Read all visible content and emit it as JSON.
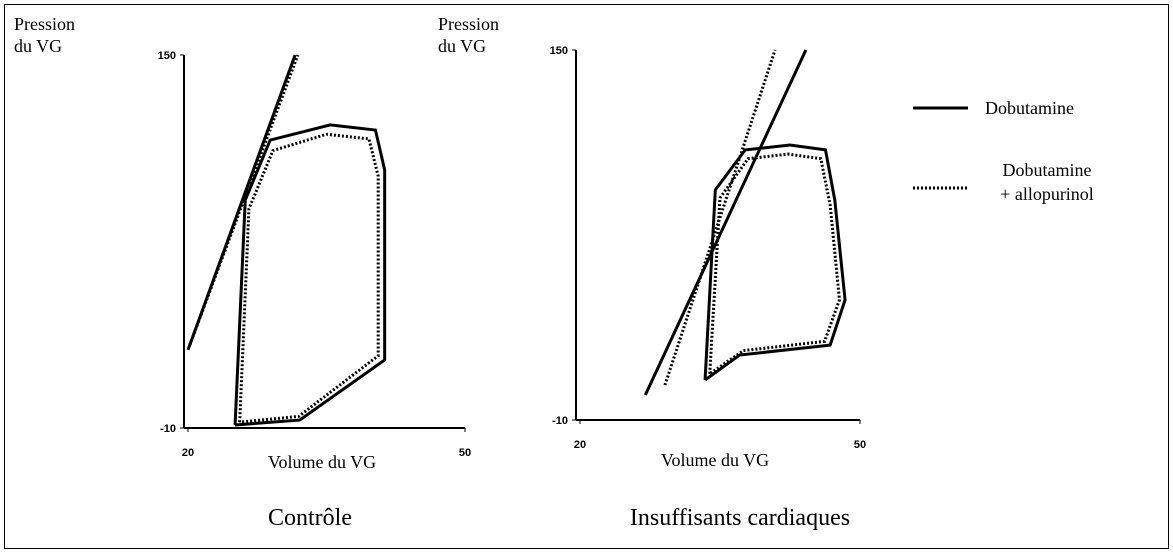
{
  "chart_data": [
    {
      "type": "line",
      "subtitle": "Contrôle",
      "ylabel_lines": [
        "Pression",
        "du VG"
      ],
      "xlabel": "Volume du VG",
      "xlim": [
        20,
        50
      ],
      "ylim": [
        -10,
        150
      ],
      "xticks": [
        20,
        50
      ],
      "yticks": [
        -10,
        150
      ],
      "series": [
        {
          "style": "solid",
          "x": [
            20,
            31.6
          ],
          "values": [
            23.5,
            150
          ]
        },
        {
          "style": "dotted",
          "x": [
            20.2,
            31.9
          ],
          "values": [
            25.6,
            150
          ]
        },
        {
          "style": "solid",
          "x": [
            25.1,
            26.2,
            28.9,
            35.4,
            40.3,
            41.3,
            41.3,
            32.1,
            25.1
          ],
          "values": [
            -8.7,
            87.8,
            113.5,
            120,
            117.8,
            100.7,
            19.2,
            -6.6,
            -8.7
          ]
        },
        {
          "style": "dotted",
          "x": [
            25.6,
            26.6,
            29.2,
            35,
            39.6,
            40.6,
            40.6,
            32,
            25.6
          ],
          "values": [
            -7.5,
            84,
            109,
            116,
            114,
            98,
            21,
            -5,
            -7.5
          ]
        }
      ]
    },
    {
      "type": "line",
      "subtitle": "Insuffisants cardiaques",
      "ylabel_lines": [
        "Pression",
        "du VG"
      ],
      "xlabel": "Volume du VG",
      "xlim": [
        20,
        50
      ],
      "ylim": [
        -10,
        150
      ],
      "xticks": [
        20,
        50
      ],
      "yticks": [
        -10,
        150
      ],
      "series": [
        {
          "style": "solid",
          "x": [
            27,
            44.2
          ],
          "values": [
            0.8,
            150
          ]
        },
        {
          "style": "dotted",
          "x": [
            29.1,
            40.9
          ],
          "values": [
            5.1,
            150
          ]
        },
        {
          "style": "solid",
          "x": [
            33.4,
            34.5,
            37.7,
            42.5,
            46.3,
            47.3,
            48.4,
            46.8,
            37.1,
            33.4
          ],
          "values": [
            7.3,
            89.5,
            106.8,
            108.9,
            106.8,
            85.1,
            41.9,
            22.4,
            18.1,
            7.3
          ]
        },
        {
          "style": "dotted",
          "x": [
            33.9,
            35,
            38,
            42.3,
            45.8,
            46.8,
            47.8,
            46.2,
            37.5,
            33.9
          ],
          "values": [
            10,
            86,
            103,
            105,
            103,
            83,
            42,
            24,
            20,
            10
          ]
        }
      ]
    }
  ],
  "legend": {
    "items": [
      {
        "name_lines": [
          "Dobutamine"
        ],
        "style": "solid"
      },
      {
        "name_lines": [
          "Dobutamine",
          "+ allopurinol"
        ],
        "style": "dotted"
      }
    ]
  }
}
